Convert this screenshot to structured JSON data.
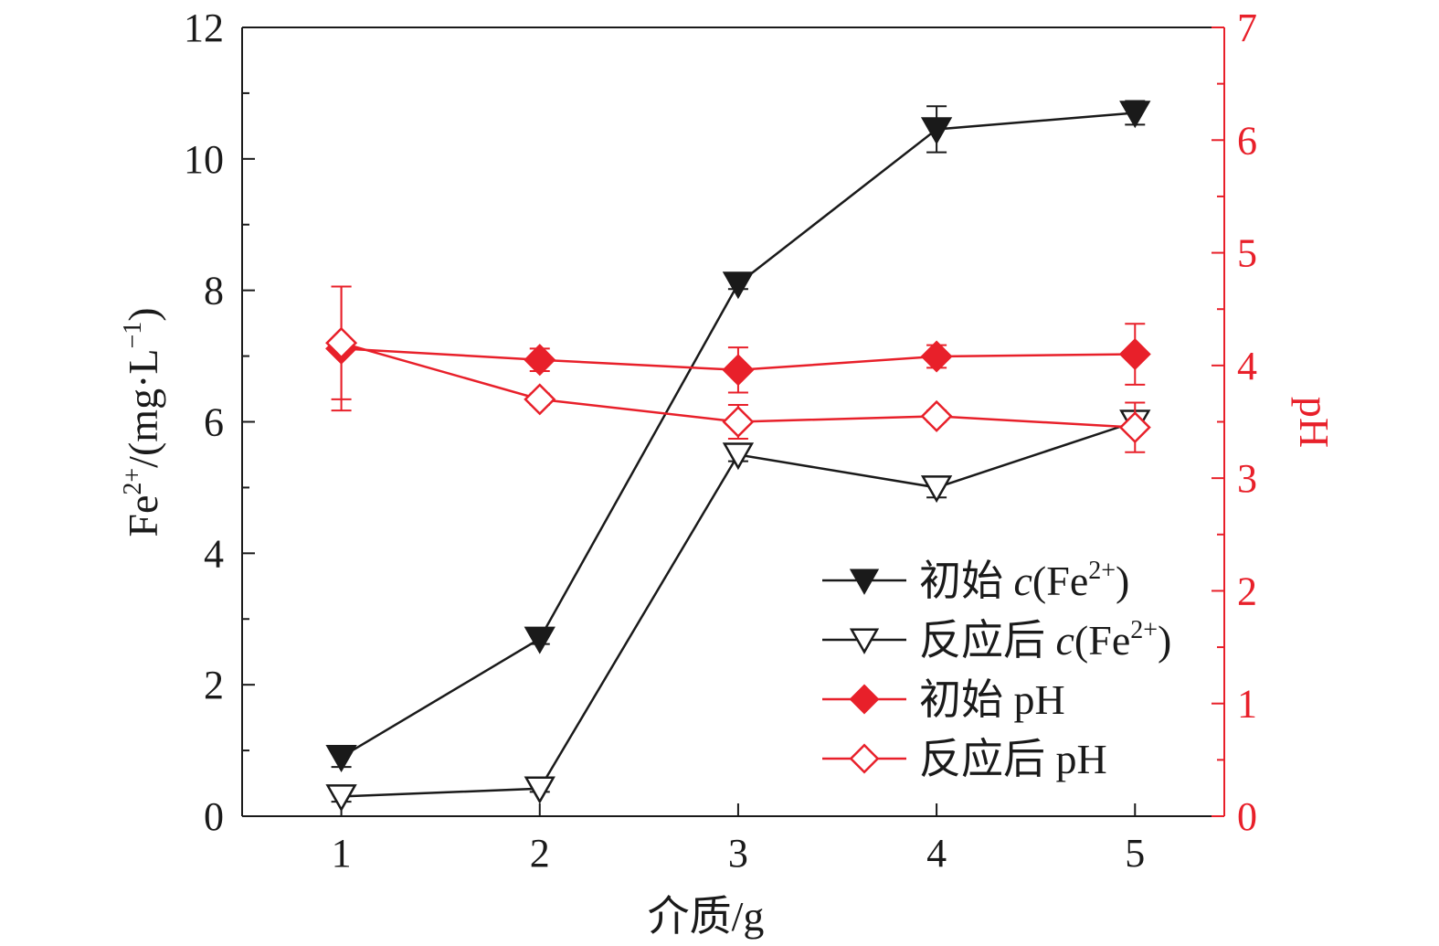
{
  "chart_data": {
    "type": "line",
    "xlabel": "介质/g",
    "ylabel_left": {
      "main": "Fe",
      "sup": "2+",
      "rest": "/(mg·L",
      "unit_sup": "−1",
      "close": ")"
    },
    "ylabel_right": "pH",
    "x": [
      1,
      2,
      3,
      4,
      5
    ],
    "xlim": [
      0.5,
      5.45
    ],
    "ylim_left": [
      0,
      12
    ],
    "ylim_right": [
      0,
      7
    ],
    "xticks": [
      "1",
      "2",
      "3",
      "4",
      "5"
    ],
    "yticks_left": [
      "0",
      "2",
      "4",
      "6",
      "8",
      "10",
      "12"
    ],
    "yticks_right": [
      "0",
      "1",
      "2",
      "3",
      "4",
      "5",
      "6",
      "7"
    ],
    "colors": {
      "black": "#1a1a1a",
      "red": "#e8202a"
    },
    "series": [
      {
        "name": "初始 c(Fe2+)",
        "legend": {
          "pre": "初始 ",
          "italic": "c",
          "mid": "(Fe",
          "sup": "2+",
          "post": ")"
        },
        "axis": "left",
        "marker": "triangle-down-filled",
        "color": "black",
        "values": [
          0.9,
          2.7,
          8.1,
          10.45,
          10.7
        ],
        "errors": [
          0.15,
          0.08,
          0.08,
          0.35,
          0.18
        ]
      },
      {
        "name": "反应后 c(Fe2+)",
        "legend": {
          "pre": "反应后 ",
          "italic": "c",
          "mid": "(Fe",
          "sup": "2+",
          "post": ")"
        },
        "axis": "left",
        "marker": "triangle-down-open",
        "color": "black",
        "values": [
          0.3,
          0.42,
          5.5,
          5.0,
          6.0
        ],
        "errors": [
          0.08,
          0.05,
          0.1,
          0.15,
          0.08
        ]
      },
      {
        "name": "初始 pH",
        "legend": {
          "pre": "初始 pH"
        },
        "axis": "right",
        "marker": "diamond-filled",
        "color": "red",
        "values": [
          4.15,
          4.05,
          3.96,
          4.08,
          4.1
        ],
        "errors": [
          0.55,
          0.1,
          0.2,
          0.1,
          0.27
        ]
      },
      {
        "name": "反应后 pH",
        "legend": {
          "pre": "反应后 pH"
        },
        "axis": "right",
        "marker": "diamond-open",
        "color": "red",
        "values": [
          4.2,
          3.7,
          3.5,
          3.55,
          3.45
        ],
        "errors": [
          0.5,
          0.05,
          0.15,
          0.05,
          0.22
        ]
      }
    ],
    "legend_position": "lower-right",
    "grid": false
  }
}
